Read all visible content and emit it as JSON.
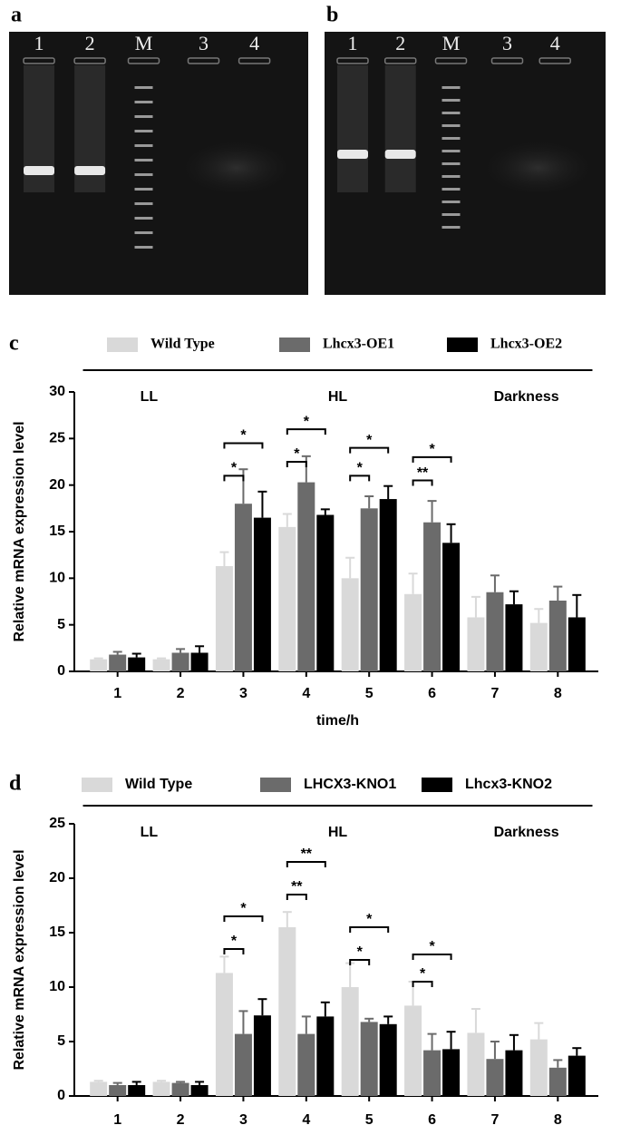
{
  "gels": [
    {
      "label": "a",
      "lanes": [
        "1",
        "2",
        "M",
        "3",
        "4"
      ]
    },
    {
      "label": "b",
      "lanes": [
        "1",
        "2",
        "M",
        "3",
        "4"
      ]
    }
  ],
  "chart_data": [
    {
      "type": "bar",
      "panel": "c",
      "ylabel": "Relative mRNA expression level",
      "xlabel": "time/h",
      "categories": [
        "1",
        "2",
        "3",
        "4",
        "5",
        "6",
        "7",
        "8"
      ],
      "ylim": [
        0,
        30
      ],
      "yticks": [
        0,
        5,
        10,
        15,
        20,
        25,
        30
      ],
      "series": [
        {
          "name": "Wild Type",
          "color": "#d9d9d9",
          "values": [
            1.3,
            1.3,
            11.3,
            15.5,
            10.0,
            8.3,
            5.8,
            5.2
          ],
          "errors": [
            0.1,
            0.1,
            1.5,
            1.4,
            2.2,
            2.2,
            2.2,
            1.5
          ]
        },
        {
          "name": "Lhcx3-OE1",
          "color": "#6b6b6b",
          "values": [
            1.8,
            2.0,
            18.0,
            20.3,
            17.5,
            16.0,
            8.5,
            7.6
          ],
          "errors": [
            0.3,
            0.4,
            3.7,
            2.8,
            1.3,
            2.3,
            1.8,
            1.5
          ]
        },
        {
          "name": "Lhcx3-OE2",
          "color": "#000000",
          "values": [
            1.5,
            2.0,
            16.5,
            16.8,
            18.5,
            13.8,
            7.2,
            5.8
          ],
          "errors": [
            0.4,
            0.7,
            2.8,
            0.6,
            1.4,
            2.0,
            1.4,
            2.4
          ]
        }
      ],
      "groups": [
        {
          "label": "LL",
          "from": "1",
          "to": "2"
        },
        {
          "label": "HL",
          "from": "3",
          "to": "6"
        },
        {
          "label": "Darkness",
          "from": "7",
          "to": "8"
        }
      ],
      "annotations": [
        {
          "text": "*",
          "x": "3",
          "y": 21,
          "from": "Wild Type",
          "to": "Lhcx3-OE1"
        },
        {
          "text": "*",
          "x": "3",
          "y": 24.5,
          "from": "Wild Type",
          "to": "Lhcx3-OE2"
        },
        {
          "text": "*",
          "x": "4",
          "y": 22.5,
          "from": "Wild Type",
          "to": "Lhcx3-OE1"
        },
        {
          "text": "*",
          "x": "4",
          "y": 26,
          "from": "Wild Type",
          "to": "Lhcx3-OE2"
        },
        {
          "text": "*",
          "x": "5",
          "y": 21,
          "from": "Wild Type",
          "to": "Lhcx3-OE1"
        },
        {
          "text": "*",
          "x": "5",
          "y": 24,
          "from": "Wild Type",
          "to": "Lhcx3-OE2"
        },
        {
          "text": "**",
          "x": "6",
          "y": 20.5,
          "from": "Wild Type",
          "to": "Lhcx3-OE1"
        },
        {
          "text": "*",
          "x": "6",
          "y": 23,
          "from": "Wild Type",
          "to": "Lhcx3-OE2"
        }
      ]
    },
    {
      "type": "bar",
      "panel": "d",
      "ylabel": "Relative mRNA expression level",
      "categories": [
        "1",
        "2",
        "3",
        "4",
        "5",
        "6",
        "7",
        "8"
      ],
      "ylim": [
        0,
        25
      ],
      "yticks": [
        0,
        5,
        10,
        15,
        20,
        25
      ],
      "series": [
        {
          "name": "Wild Type",
          "color": "#d9d9d9",
          "values": [
            1.3,
            1.3,
            11.3,
            15.5,
            10.0,
            8.3,
            5.8,
            5.2
          ],
          "errors": [
            0.1,
            0.1,
            1.5,
            1.4,
            2.2,
            2.2,
            2.2,
            1.5
          ]
        },
        {
          "name": "LHCX3-KNO1",
          "color": "#6b6b6b",
          "values": [
            1.0,
            1.2,
            5.7,
            5.7,
            6.8,
            4.2,
            3.4,
            2.6
          ],
          "errors": [
            0.2,
            0.1,
            2.1,
            1.6,
            0.3,
            1.5,
            1.6,
            0.7
          ]
        },
        {
          "name": "Lhcx3-KNO2",
          "color": "#000000",
          "values": [
            1.0,
            1.0,
            7.4,
            7.3,
            6.6,
            4.3,
            4.2,
            3.7
          ],
          "errors": [
            0.3,
            0.3,
            1.5,
            1.3,
            0.7,
            1.6,
            1.4,
            0.7
          ]
        }
      ],
      "groups": [
        {
          "label": "LL",
          "from": "1",
          "to": "2"
        },
        {
          "label": "HL",
          "from": "3",
          "to": "6"
        },
        {
          "label": "Darkness",
          "from": "7",
          "to": "8"
        }
      ],
      "annotations": [
        {
          "text": "*",
          "x": "3",
          "y": 13.5,
          "from": "Wild Type",
          "to": "LHCX3-KNO1"
        },
        {
          "text": "*",
          "x": "3",
          "y": 16.5,
          "from": "Wild Type",
          "to": "Lhcx3-KNO2"
        },
        {
          "text": "**",
          "x": "4",
          "y": 18.5,
          "from": "Wild Type",
          "to": "LHCX3-KNO1"
        },
        {
          "text": "**",
          "x": "4",
          "y": 21.5,
          "from": "Wild Type",
          "to": "Lhcx3-KNO2"
        },
        {
          "text": "*",
          "x": "5",
          "y": 12.5,
          "from": "Wild Type",
          "to": "LHCX3-KNO1"
        },
        {
          "text": "*",
          "x": "5",
          "y": 15.5,
          "from": "Wild Type",
          "to": "Lhcx3-KNO2"
        },
        {
          "text": "*",
          "x": "6",
          "y": 10.5,
          "from": "Wild Type",
          "to": "LHCX3-KNO1"
        },
        {
          "text": "*",
          "x": "6",
          "y": 13,
          "from": "Wild Type",
          "to": "Lhcx3-KNO2"
        }
      ]
    }
  ]
}
